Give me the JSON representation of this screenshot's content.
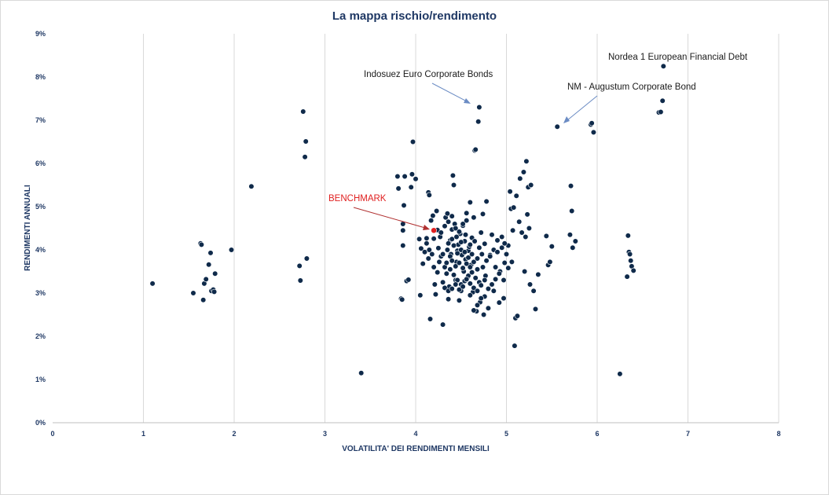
{
  "chart_data": {
    "type": "scatter",
    "title": "La mappa rischio/rendimento",
    "xlabel": "VOLATILITA' DEI RENDIMENTI MENSILI",
    "ylabel": "RENDIMENTI ANNUALI",
    "xlim": [
      0,
      8
    ],
    "ylim": [
      0,
      9
    ],
    "xticks": [
      "0",
      "1",
      "2",
      "3",
      "4",
      "5",
      "6",
      "7",
      "8"
    ],
    "yticks": [
      "0%",
      "1%",
      "2%",
      "3%",
      "4%",
      "5%",
      "6%",
      "7%",
      "8%",
      "9%"
    ],
    "grid": "vertical",
    "point_color": "#0f2a4a",
    "highlight_color": "#e02020",
    "annotation_color": "#6b8cc4",
    "series": [
      {
        "points": [
          [
            1.1,
            3.22
          ],
          [
            1.55,
            3.0
          ],
          [
            1.63,
            4.15
          ],
          [
            1.64,
            4.12
          ],
          [
            1.66,
            2.84
          ],
          [
            1.67,
            3.22
          ],
          [
            1.69,
            3.32
          ],
          [
            1.72,
            3.66
          ],
          [
            1.74,
            3.93
          ],
          [
            1.75,
            3.05
          ],
          [
            1.77,
            3.08
          ],
          [
            1.78,
            3.03
          ],
          [
            1.79,
            3.45
          ],
          [
            1.97,
            4.0
          ],
          [
            2.19,
            5.47
          ],
          [
            2.72,
            3.63
          ],
          [
            2.73,
            3.29
          ],
          [
            2.76,
            7.2
          ],
          [
            2.78,
            6.15
          ],
          [
            2.79,
            6.51
          ],
          [
            2.8,
            3.8
          ],
          [
            3.4,
            1.15
          ],
          [
            3.8,
            5.7
          ],
          [
            3.81,
            5.42
          ],
          [
            3.84,
            2.87
          ],
          [
            3.85,
            2.85
          ],
          [
            3.86,
            4.6
          ],
          [
            3.86,
            4.1
          ],
          [
            3.86,
            4.45
          ],
          [
            3.87,
            5.03
          ],
          [
            3.88,
            5.7
          ],
          [
            3.9,
            3.28
          ],
          [
            3.92,
            3.31
          ],
          [
            3.95,
            5.45
          ],
          [
            3.96,
            5.75
          ],
          [
            3.97,
            6.5
          ],
          [
            4.0,
            5.64
          ],
          [
            4.04,
            4.25
          ],
          [
            4.05,
            2.95
          ],
          [
            4.06,
            4.03
          ],
          [
            4.08,
            3.68
          ],
          [
            4.12,
            4.27
          ],
          [
            4.14,
            3.8
          ],
          [
            4.14,
            5.33
          ],
          [
            4.15,
            5.27
          ],
          [
            4.16,
            2.4
          ],
          [
            4.17,
            4.68
          ],
          [
            4.18,
            3.9
          ],
          [
            4.19,
            4.79
          ],
          [
            4.2,
            4.26
          ],
          [
            4.21,
            3.2
          ],
          [
            4.22,
            2.97
          ],
          [
            4.23,
            4.9
          ],
          [
            4.24,
            4.46
          ],
          [
            4.25,
            4.04
          ],
          [
            4.27,
            4.3
          ],
          [
            4.28,
            3.85
          ],
          [
            4.3,
            2.27
          ],
          [
            4.32,
            3.6
          ],
          [
            4.33,
            4.75
          ],
          [
            4.34,
            3.45
          ],
          [
            4.35,
            4.84
          ],
          [
            4.36,
            2.86
          ],
          [
            4.37,
            3.15
          ],
          [
            4.38,
            4.22
          ],
          [
            4.39,
            3.9
          ],
          [
            4.4,
            4.47
          ],
          [
            4.41,
            5.72
          ],
          [
            4.42,
            5.5
          ],
          [
            4.43,
            4.6
          ],
          [
            4.44,
            3.3
          ],
          [
            4.45,
            3.72
          ],
          [
            4.46,
            3.98
          ],
          [
            4.47,
            4.12
          ],
          [
            4.48,
            2.83
          ],
          [
            4.49,
            4.37
          ],
          [
            4.5,
            3.05
          ],
          [
            4.51,
            3.88
          ],
          [
            4.52,
            4.56
          ],
          [
            4.53,
            3.5
          ],
          [
            4.54,
            4.2
          ],
          [
            4.55,
            3.78
          ],
          [
            4.56,
            4.85
          ],
          [
            4.57,
            3.36
          ],
          [
            4.58,
            3.98
          ],
          [
            4.59,
            4.07
          ],
          [
            4.6,
            5.1
          ],
          [
            4.61,
            3.65
          ],
          [
            4.62,
            4.28
          ],
          [
            4.63,
            3.02
          ],
          [
            4.64,
            4.75
          ],
          [
            4.65,
            6.3
          ],
          [
            4.66,
            6.32
          ],
          [
            4.67,
            2.58
          ],
          [
            4.68,
            3.55
          ],
          [
            4.69,
            6.97
          ],
          [
            4.7,
            7.3
          ],
          [
            4.71,
            2.79
          ],
          [
            4.72,
            4.4
          ],
          [
            4.73,
            3.9
          ],
          [
            4.74,
            4.83
          ],
          [
            4.75,
            2.5
          ],
          [
            4.76,
            4.14
          ],
          [
            4.77,
            3.4
          ],
          [
            4.78,
            5.12
          ],
          [
            4.8,
            2.65
          ],
          [
            4.82,
            3.88
          ],
          [
            4.84,
            4.35
          ],
          [
            4.86,
            3.05
          ],
          [
            4.88,
            3.6
          ],
          [
            4.9,
            4.22
          ],
          [
            4.92,
            2.78
          ],
          [
            4.93,
            3.5
          ],
          [
            4.95,
            4.05
          ],
          [
            4.97,
            2.88
          ],
          [
            4.98,
            3.7
          ],
          [
            5.0,
            3.9
          ],
          [
            5.02,
            4.1
          ],
          [
            5.04,
            5.35
          ],
          [
            5.05,
            4.95
          ],
          [
            5.06,
            3.72
          ],
          [
            5.07,
            4.45
          ],
          [
            5.08,
            4.98
          ],
          [
            5.09,
            1.78
          ],
          [
            5.1,
            2.42
          ],
          [
            5.11,
            5.25
          ],
          [
            5.12,
            2.47
          ],
          [
            5.14,
            4.65
          ],
          [
            5.15,
            5.65
          ],
          [
            5.17,
            4.4
          ],
          [
            5.19,
            5.8
          ],
          [
            5.2,
            3.5
          ],
          [
            5.21,
            4.3
          ],
          [
            5.22,
            6.05
          ],
          [
            5.23,
            4.82
          ],
          [
            5.24,
            5.45
          ],
          [
            5.25,
            4.5
          ],
          [
            5.26,
            3.2
          ],
          [
            5.27,
            5.5
          ],
          [
            5.3,
            3.05
          ],
          [
            5.32,
            2.63
          ],
          [
            5.35,
            3.43
          ],
          [
            5.44,
            4.32
          ],
          [
            5.46,
            3.65
          ],
          [
            5.48,
            3.72
          ],
          [
            5.5,
            4.08
          ],
          [
            5.56,
            6.85
          ],
          [
            5.7,
            4.35
          ],
          [
            5.71,
            5.48
          ],
          [
            5.72,
            4.9
          ],
          [
            5.73,
            4.05
          ],
          [
            5.76,
            4.2
          ],
          [
            5.93,
            6.9
          ],
          [
            5.94,
            6.93
          ],
          [
            5.96,
            6.72
          ],
          [
            6.25,
            1.13
          ],
          [
            6.33,
            3.38
          ],
          [
            6.34,
            4.33
          ],
          [
            6.35,
            3.95
          ],
          [
            6.36,
            3.9
          ],
          [
            6.37,
            3.75
          ],
          [
            6.38,
            3.62
          ],
          [
            6.4,
            3.52
          ],
          [
            6.68,
            7.18
          ],
          [
            6.7,
            7.19
          ],
          [
            6.72,
            7.45
          ],
          [
            6.73,
            8.25
          ],
          [
            4.35,
            4.0
          ],
          [
            4.38,
            3.85
          ],
          [
            4.42,
            4.1
          ],
          [
            4.46,
            3.92
          ],
          [
            4.5,
            4.0
          ],
          [
            4.54,
            3.95
          ],
          [
            4.58,
            3.82
          ],
          [
            4.62,
            3.9
          ],
          [
            4.4,
            3.75
          ],
          [
            4.44,
            3.62
          ],
          [
            4.48,
            3.7
          ],
          [
            4.52,
            3.58
          ],
          [
            4.56,
            3.68
          ],
          [
            4.6,
            3.6
          ],
          [
            4.64,
            3.72
          ],
          [
            4.68,
            3.8
          ],
          [
            4.36,
            4.15
          ],
          [
            4.4,
            4.25
          ],
          [
            4.45,
            4.3
          ],
          [
            4.5,
            4.18
          ],
          [
            4.55,
            4.35
          ],
          [
            4.6,
            4.12
          ],
          [
            4.65,
            4.2
          ],
          [
            4.7,
            4.05
          ],
          [
            4.3,
            3.9
          ],
          [
            4.34,
            3.7
          ],
          [
            4.38,
            3.55
          ],
          [
            4.42,
            3.42
          ],
          [
            4.46,
            3.3
          ],
          [
            4.5,
            3.2
          ],
          [
            4.54,
            3.28
          ],
          [
            4.58,
            3.4
          ],
          [
            4.62,
            3.48
          ],
          [
            4.66,
            3.35
          ],
          [
            4.7,
            3.25
          ],
          [
            4.74,
            3.6
          ],
          [
            4.78,
            3.75
          ],
          [
            4.82,
            3.85
          ],
          [
            4.86,
            4.0
          ],
          [
            4.9,
            3.95
          ],
          [
            4.28,
            4.4
          ],
          [
            4.32,
            4.55
          ],
          [
            4.36,
            4.65
          ],
          [
            4.4,
            4.78
          ],
          [
            4.44,
            4.5
          ],
          [
            4.48,
            4.42
          ],
          [
            4.52,
            4.6
          ],
          [
            4.56,
            4.68
          ],
          [
            4.2,
            3.6
          ],
          [
            4.24,
            3.48
          ],
          [
            4.26,
            3.72
          ],
          [
            4.3,
            3.25
          ],
          [
            4.32,
            3.12
          ],
          [
            4.36,
            3.05
          ],
          [
            4.4,
            3.1
          ],
          [
            4.44,
            3.2
          ],
          [
            4.48,
            3.08
          ],
          [
            4.52,
            3.15
          ],
          [
            4.56,
            3.32
          ],
          [
            4.6,
            3.22
          ],
          [
            4.64,
            3.12
          ],
          [
            4.68,
            3.05
          ],
          [
            4.72,
            3.18
          ],
          [
            4.76,
            3.3
          ],
          [
            4.1,
            3.95
          ],
          [
            4.12,
            4.15
          ],
          [
            4.15,
            4.0
          ],
          [
            4.95,
            4.3
          ],
          [
            4.98,
            4.15
          ],
          [
            5.02,
            3.58
          ],
          [
            4.97,
            3.3
          ],
          [
            4.92,
            3.45
          ],
          [
            4.88,
            3.32
          ],
          [
            4.84,
            3.2
          ],
          [
            4.8,
            3.1
          ],
          [
            4.76,
            2.92
          ],
          [
            4.72,
            2.88
          ],
          [
            4.68,
            2.72
          ],
          [
            4.64,
            2.6
          ],
          [
            4.6,
            2.95
          ]
        ]
      }
    ],
    "highlight_point": {
      "label": "BENCHMARK",
      "x": 4.2,
      "y": 4.45
    },
    "annotations": [
      {
        "text": "Nordea 1 European Financial Debt"
      },
      {
        "text": "Indosuez Euro Corporate Bonds"
      },
      {
        "text": "NM - Augustum Corporate Bond"
      }
    ]
  }
}
